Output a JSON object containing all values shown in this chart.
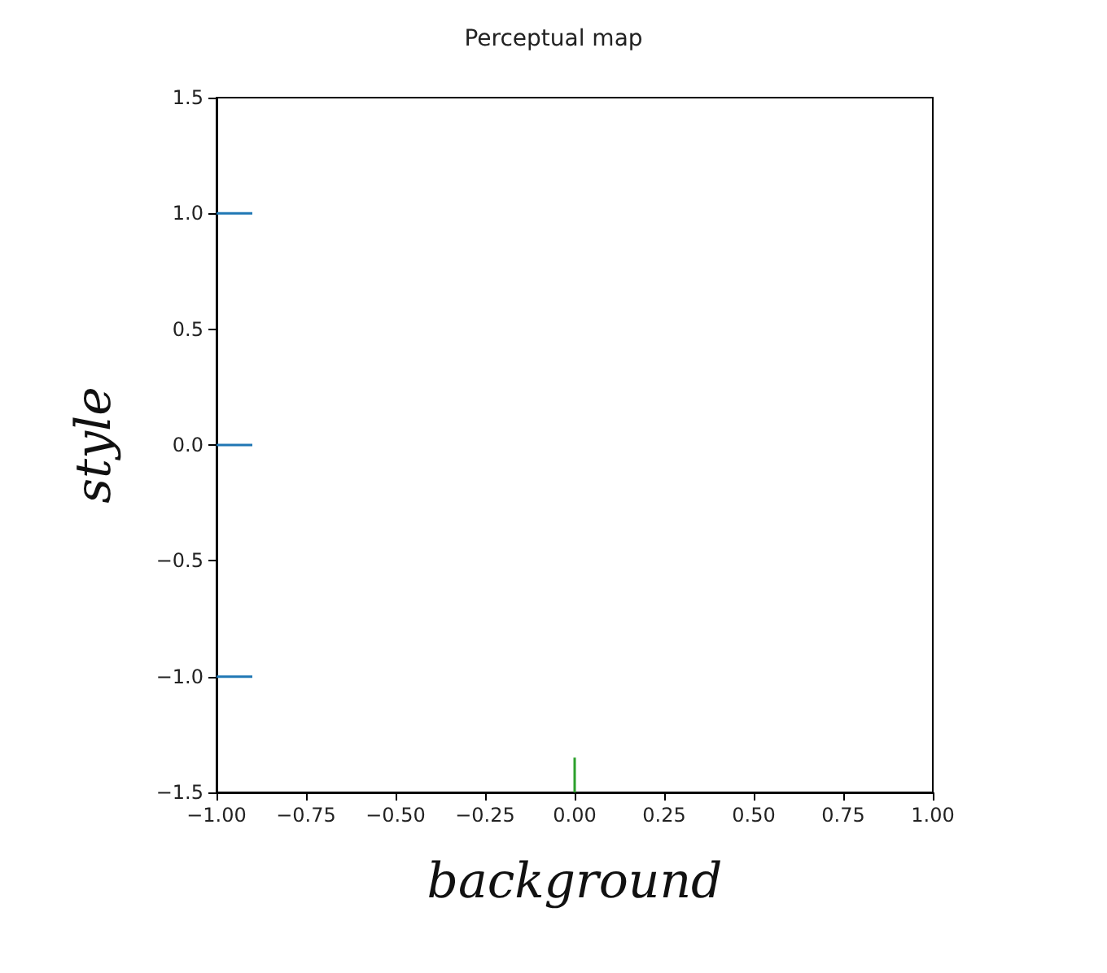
{
  "chart_data": {
    "type": "line",
    "title": "Perceptual map",
    "xlabel": "background",
    "ylabel": "style",
    "xlim": [
      -1.0,
      1.0
    ],
    "xticks": [
      {
        "value": -1,
        "label": "−1.00"
      },
      {
        "value": -0.75,
        "label": "−0.75"
      },
      {
        "value": -0.5,
        "label": "−0.50"
      },
      {
        "value": -0.25,
        "label": "−0.25"
      },
      {
        "value": 0,
        "label": "0.00"
      },
      {
        "value": 0.25,
        "label": "0.25"
      },
      {
        "value": 0.5,
        "label": "0.50"
      },
      {
        "value": 0.75,
        "label": "0.75"
      },
      {
        "value": 1,
        "label": "1.00"
      }
    ],
    "ylim": [
      -1.5,
      1.5
    ],
    "yticks": [
      {
        "value": -1.5,
        "label": "−1.5"
      },
      {
        "value": -1,
        "label": "−1.0"
      },
      {
        "value": -0.5,
        "label": "−0.5"
      },
      {
        "value": 0,
        "label": "0.0"
      },
      {
        "value": 0.5,
        "label": "0.5"
      },
      {
        "value": 1,
        "label": "1.0"
      },
      {
        "value": 1.5,
        "label": "1.5"
      }
    ],
    "series": [
      {
        "color": "#1f77b4",
        "x": [
          -1.0,
          -0.9
        ],
        "values": [
          1.0,
          1.0
        ]
      },
      {
        "color": "#1f77b4",
        "x": [
          -1.0,
          -0.9
        ],
        "values": [
          0.0,
          0.0
        ]
      },
      {
        "color": "#1f77b4",
        "x": [
          -1.0,
          -0.9
        ],
        "values": [
          -1.0,
          -1.0
        ]
      },
      {
        "color": "#2ca02c",
        "x": [
          0.0,
          0.0
        ],
        "values": [
          -1.5,
          -1.35
        ]
      }
    ],
    "grid": false,
    "marker": "none",
    "line_style": "solid"
  }
}
